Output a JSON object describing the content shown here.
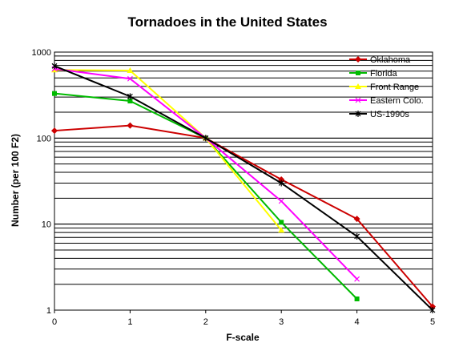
{
  "chart_data": {
    "type": "line",
    "title": "Tornadoes in the United States",
    "xlabel": "F-scale",
    "ylabel": "Number (per 100 F2)",
    "yscale": "log",
    "ylim": [
      1,
      1000
    ],
    "xlim": [
      0,
      5
    ],
    "x_ticks": [
      "0",
      "1",
      "2",
      "3",
      "4",
      "5"
    ],
    "y_ticks": [
      "1",
      "10",
      "100",
      "1000"
    ],
    "grid": "horizontal minor and major lines",
    "legend_position": "top-right",
    "x": [
      0,
      1,
      2,
      3,
      4,
      5
    ],
    "series": [
      {
        "name": "Oklahoma",
        "color": "#cc0000",
        "marker": "diamond",
        "values": [
          122,
          140,
          100,
          33,
          11.5,
          1.1
        ]
      },
      {
        "name": "Florida",
        "color": "#00bb00",
        "marker": "square",
        "values": [
          330,
          270,
          100,
          10.5,
          1.35,
          null
        ]
      },
      {
        "name": "Front Range",
        "color": "#ffff00",
        "marker": "triangle",
        "values": [
          620,
          610,
          100,
          8.5,
          null,
          null
        ]
      },
      {
        "name": "Eastern Colo.",
        "color": "#ff00ff",
        "marker": "x",
        "values": [
          640,
          490,
          100,
          18.5,
          2.3,
          null
        ]
      },
      {
        "name": "US-1990s",
        "color": "#000000",
        "marker": "star",
        "values": [
          690,
          305,
          100,
          30,
          7.2,
          1.0
        ]
      }
    ]
  }
}
